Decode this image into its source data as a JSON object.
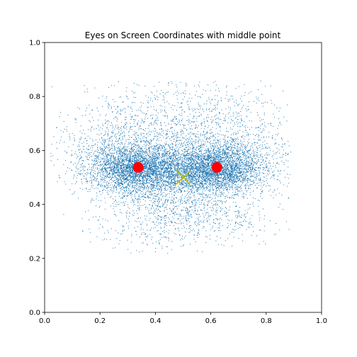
{
  "chart_data": {
    "type": "scatter",
    "title": "Eyes on Screen Coordinates with middle point",
    "xlabel": "",
    "ylabel": "",
    "xlim": [
      0,
      1
    ],
    "ylim": [
      0,
      1
    ],
    "grid": false,
    "xticks": [
      "0.0",
      "0.2",
      "0.4",
      "0.6",
      "0.8",
      "1.0"
    ],
    "yticks": [
      "0.0",
      "0.2",
      "0.4",
      "0.6",
      "0.8",
      "1.0"
    ],
    "colors": {
      "scatter": "#1f77b4",
      "eye_markers": "#ff0000",
      "middle_marker": "#bfbf00"
    },
    "series": [
      {
        "kind": "gaze-point-cloud",
        "x_range": [
          0.02,
          0.89
        ],
        "y_range": [
          0.22,
          0.86
        ],
        "dense_band_y": [
          0.44,
          0.62
        ],
        "left_cluster_center": [
          0.33,
          0.53
        ],
        "right_cluster_center": [
          0.62,
          0.53
        ]
      },
      {
        "kind": "eye-positions",
        "points": [
          {
            "x": 0.338,
            "y": 0.537
          },
          {
            "x": 0.622,
            "y": 0.537
          }
        ]
      },
      {
        "kind": "middle-point",
        "points": [
          {
            "x": 0.5,
            "y": 0.5
          }
        ]
      }
    ]
  }
}
